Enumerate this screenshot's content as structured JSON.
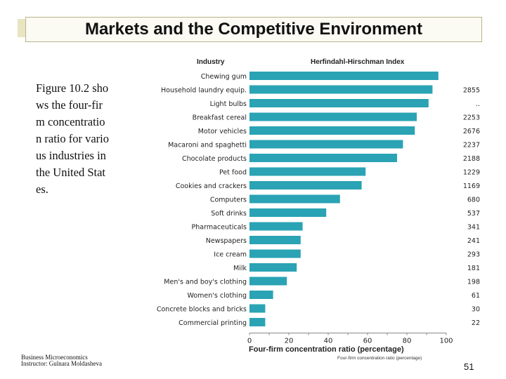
{
  "slide": {
    "title": "Markets and the Competitive Environment",
    "description": "Figure 10.2 shows the four-firm concentration ratio for various industries in the United States.",
    "footer_line1": "Business Microeconomics",
    "footer_line2": "Instructor: Gulnara Moldasheva",
    "page_number": "51"
  },
  "chart_data": {
    "type": "bar",
    "orientation": "horizontal",
    "category_header": "Industry",
    "value_header": "Herfindahl-Hirschman Index",
    "xlabel": "Four-firm concentration ratio (percentage)",
    "xlabel_small": "Four-firm concentration ratio (percentage)",
    "xlim": [
      0,
      100
    ],
    "xticks": [
      "0",
      "20",
      "40",
      "60",
      "80",
      "100"
    ],
    "bar_color": "#2aa3b4",
    "categories": [
      "Chewing gum",
      "Household laundry equip.",
      "Light bulbs",
      "Breakfast cereal",
      "Motor vehicles",
      "Macaroni and spaghetti",
      "Chocolate products",
      "Pet food",
      "Cookies and crackers",
      "Computers",
      "Soft drinks",
      "Pharmaceuticals",
      "Newspapers",
      "Ice cream",
      "Milk",
      "Men's and boy's clothing",
      "Women's clothing",
      "Concrete blocks and bricks",
      "Commercial printing"
    ],
    "values": [
      96,
      93,
      91,
      85,
      84,
      78,
      75,
      59,
      57,
      46,
      39,
      27,
      26,
      26,
      24,
      19,
      12,
      8,
      8
    ],
    "hhi": [
      "",
      "2855",
      "..",
      "2253",
      "2676",
      "2237",
      "2188",
      "1229",
      "1169",
      "680",
      "537",
      "341",
      "241",
      "293",
      "181",
      "198",
      "61",
      "30",
      "22"
    ]
  }
}
